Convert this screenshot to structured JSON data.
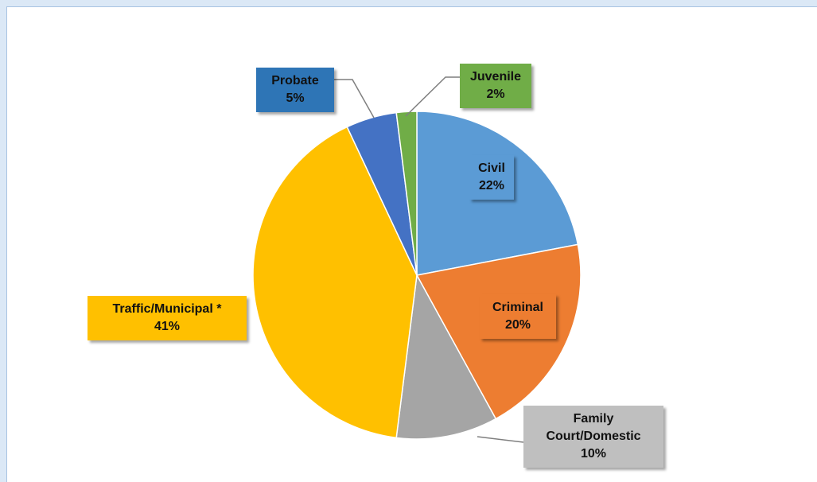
{
  "chart_data": {
    "type": "pie",
    "categories": [
      "Civil",
      "Criminal",
      "Family Court/Domestic",
      "Traffic/Municipal *",
      "Probate",
      "Juvenile"
    ],
    "values": [
      22,
      20,
      10,
      41,
      5,
      2
    ],
    "value_labels": [
      "22%",
      "20%",
      "10%",
      "41%",
      "5%",
      "2%"
    ],
    "colors": [
      "#5b9bd5",
      "#ed7d31",
      "#a5a5a5",
      "#ffc000",
      "#4472c4",
      "#70ad47"
    ]
  }
}
